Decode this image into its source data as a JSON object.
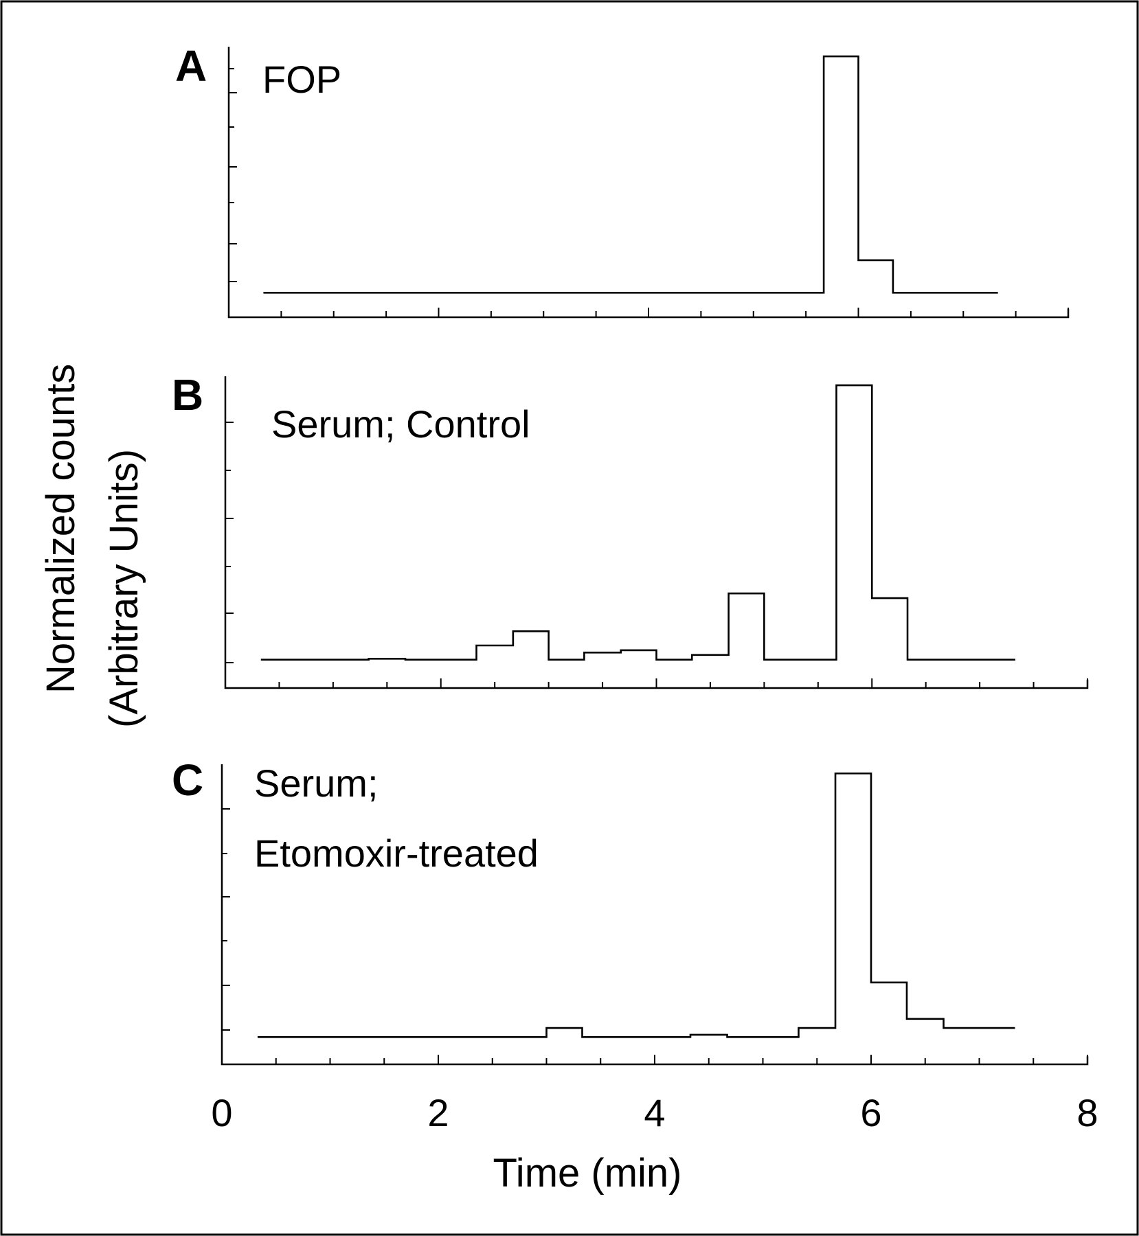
{
  "chart_data": {
    "type": "line",
    "xlabel": "Time (min)",
    "ylabel_lines": [
      "Normalized counts",
      "(Arbitrary Units)"
    ],
    "x_ticks": [
      "0",
      "2",
      "4",
      "6",
      "8"
    ],
    "xlim": [
      0,
      8
    ],
    "panels": [
      {
        "letter": "A",
        "title_lines": [
          "FOP"
        ],
        "ylim": [
          0,
          6.3
        ],
        "x": [
          0.33,
          0.67,
          1.0,
          1.33,
          1.67,
          2.0,
          2.33,
          2.67,
          3.0,
          3.33,
          3.67,
          4.0,
          4.33,
          4.67,
          5.0,
          5.33,
          5.67,
          6.0,
          6.33,
          6.67,
          7.0,
          7.33
        ],
        "y": [
          0.6,
          0.6,
          0.6,
          0.6,
          0.6,
          0.6,
          0.6,
          0.6,
          0.6,
          0.6,
          0.6,
          0.6,
          0.6,
          0.6,
          0.6,
          0.6,
          6.4,
          1.4,
          0.6,
          0.6,
          0.6,
          0.6
        ]
      },
      {
        "letter": "B",
        "title_lines": [
          "Serum; Control"
        ],
        "ylim": [
          0,
          6.3
        ],
        "x": [
          0.33,
          0.67,
          1.0,
          1.33,
          1.67,
          2.0,
          2.33,
          2.67,
          3.0,
          3.33,
          3.67,
          4.0,
          4.33,
          4.67,
          5.0,
          5.33,
          5.67,
          6.0,
          6.33,
          6.67,
          7.0,
          7.33
        ],
        "y": [
          0.6,
          0.6,
          0.6,
          0.62,
          0.6,
          0.6,
          0.9,
          1.2,
          0.6,
          0.75,
          0.8,
          0.6,
          0.7,
          2.0,
          0.6,
          0.6,
          6.4,
          1.9,
          0.6,
          0.6,
          0.6,
          0.6
        ]
      },
      {
        "letter": "C",
        "title_lines": [
          "Serum;",
          "Etomoxir-treated"
        ],
        "ylim": [
          0,
          6.3
        ],
        "x": [
          0.33,
          0.67,
          1.0,
          1.33,
          1.67,
          2.0,
          2.33,
          2.67,
          3.0,
          3.33,
          3.67,
          4.0,
          4.33,
          4.67,
          5.0,
          5.33,
          5.67,
          6.0,
          6.33,
          6.67,
          7.0,
          7.33
        ],
        "y": [
          0.6,
          0.6,
          0.6,
          0.6,
          0.6,
          0.6,
          0.6,
          0.6,
          0.8,
          0.6,
          0.6,
          0.6,
          0.65,
          0.6,
          0.6,
          0.8,
          6.4,
          1.8,
          1.0,
          0.8,
          0.8,
          0.8
        ]
      }
    ]
  }
}
